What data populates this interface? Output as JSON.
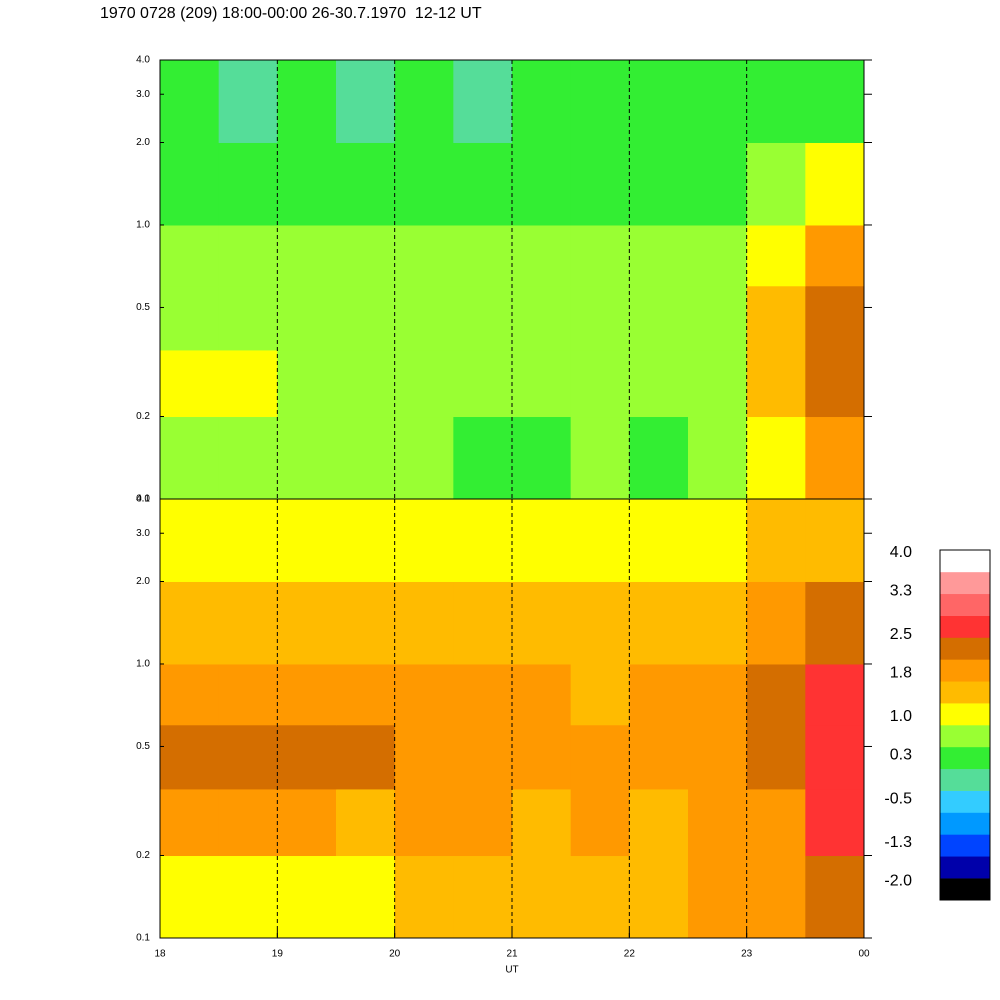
{
  "chart_data": [
    {
      "type": "heatmap",
      "title": "1970 0728 (209) 18:00-00:00 26-30.7.1970  12-12 UT",
      "xlim": [
        18,
        24
      ],
      "xticks": [
        18,
        19,
        20,
        21,
        22,
        23,
        {
          "value": 24,
          "label": "00"
        }
      ],
      "ylim": [
        0.1,
        4
      ],
      "log_y": true,
      "yticks": [
        0.1,
        0.2,
        0.5,
        {
          "value": 1,
          "label": "1.0"
        },
        {
          "value": 2,
          "label": "2.0"
        },
        {
          "value": 3,
          "label": "3.0"
        },
        {
          "value": 4,
          "label": "4.0"
        }
      ],
      "x_edges": [
        18,
        18.5,
        19,
        19.5,
        20,
        20.5,
        21,
        21.5,
        22,
        22.5,
        23,
        23.5,
        24
      ],
      "y_edges": [
        0.1,
        0.2,
        0.35,
        0.6,
        1,
        2,
        4
      ],
      "values": [
        [
          0.6,
          0.8,
          0.6,
          0.7,
          0.6,
          0.5,
          0.4,
          0.6,
          0.5,
          0.7,
          1.2,
          1.8
        ],
        [
          1.0,
          1.1,
          0.9,
          0.9,
          0.8,
          0.7,
          0.9,
          0.7,
          0.6,
          0.8,
          1.4,
          2.2
        ],
        [
          0.9,
          0.9,
          0.8,
          0.8,
          0.8,
          0.7,
          0.7,
          0.6,
          0.7,
          0.8,
          1.4,
          2.3
        ],
        [
          0.8,
          0.7,
          0.7,
          0.8,
          0.9,
          0.6,
          0.6,
          0.6,
          0.6,
          0.8,
          1.3,
          2.0
        ],
        [
          0.5,
          0.5,
          0.4,
          0.5,
          0.5,
          0.4,
          0.4,
          0.4,
          0.4,
          0.5,
          0.8,
          1.2
        ],
        [
          0.2,
          0.1,
          0.2,
          0.1,
          0.2,
          0.0,
          0.2,
          0.2,
          0.2,
          0.3,
          0.3,
          0.2
        ]
      ]
    },
    {
      "type": "heatmap",
      "xlabel": "UT",
      "xlim": [
        18,
        24
      ],
      "xticks": [
        18,
        19,
        20,
        21,
        22,
        23,
        {
          "value": 24,
          "label": "00"
        }
      ],
      "ylim": [
        0.1,
        4
      ],
      "log_y": true,
      "yticks": [
        0.1,
        0.2,
        0.5,
        {
          "value": 1,
          "label": "1.0"
        },
        {
          "value": 2,
          "label": "2.0"
        },
        {
          "value": 3,
          "label": "3.0"
        },
        {
          "value": 4,
          "label": "4.0"
        }
      ],
      "x_edges": [
        18,
        18.5,
        19,
        19.5,
        20,
        20.5,
        21,
        21.5,
        22,
        22.5,
        23,
        23.5,
        24
      ],
      "y_edges": [
        0.1,
        0.2,
        0.35,
        0.6,
        1,
        2,
        4
      ],
      "values": [
        [
          1.3,
          1.2,
          1.3,
          1.2,
          1.4,
          1.5,
          1.6,
          1.7,
          1.6,
          1.8,
          1.9,
          2.3
        ],
        [
          1.9,
          1.8,
          1.8,
          1.7,
          1.8,
          1.9,
          1.7,
          1.8,
          1.7,
          1.8,
          2.1,
          2.7
        ],
        [
          2.2,
          2.2,
          2.2,
          2.3,
          2.1,
          2.1,
          1.8,
          1.9,
          1.8,
          1.9,
          2.3,
          2.8
        ],
        [
          1.9,
          1.8,
          1.8,
          1.9,
          2.0,
          1.8,
          1.8,
          1.7,
          1.8,
          1.9,
          2.3,
          2.7
        ],
        [
          1.6,
          1.6,
          1.6,
          1.6,
          1.7,
          1.6,
          1.6,
          1.6,
          1.6,
          1.7,
          1.9,
          2.2
        ],
        [
          1.2,
          1.1,
          1.2,
          1.1,
          1.2,
          1.1,
          1.2,
          1.2,
          1.2,
          1.3,
          1.4,
          1.6
        ]
      ],
      "colorbar": {
        "zlim": [
          -2.2,
          4.2
        ],
        "colors": [
          "#000000",
          "#0000aa",
          "#0044ff",
          "#0099ff",
          "#33ccff",
          "#55dd99",
          "#33ee33",
          "#99ff33",
          "#ffff00",
          "#ffbb00",
          "#ff9900",
          "#d46e00",
          "#ff3333",
          "#ff6666",
          "#ff9999",
          "#ffffff"
        ],
        "ticks": [
          {
            "value": 4,
            "label": "4.0"
          },
          3.3,
          2.5,
          1.8,
          {
            "value": 1,
            "label": "1.0"
          },
          0.3,
          -0.5,
          -1.3,
          {
            "value": -2,
            "label": "-2.0"
          }
        ]
      }
    }
  ]
}
